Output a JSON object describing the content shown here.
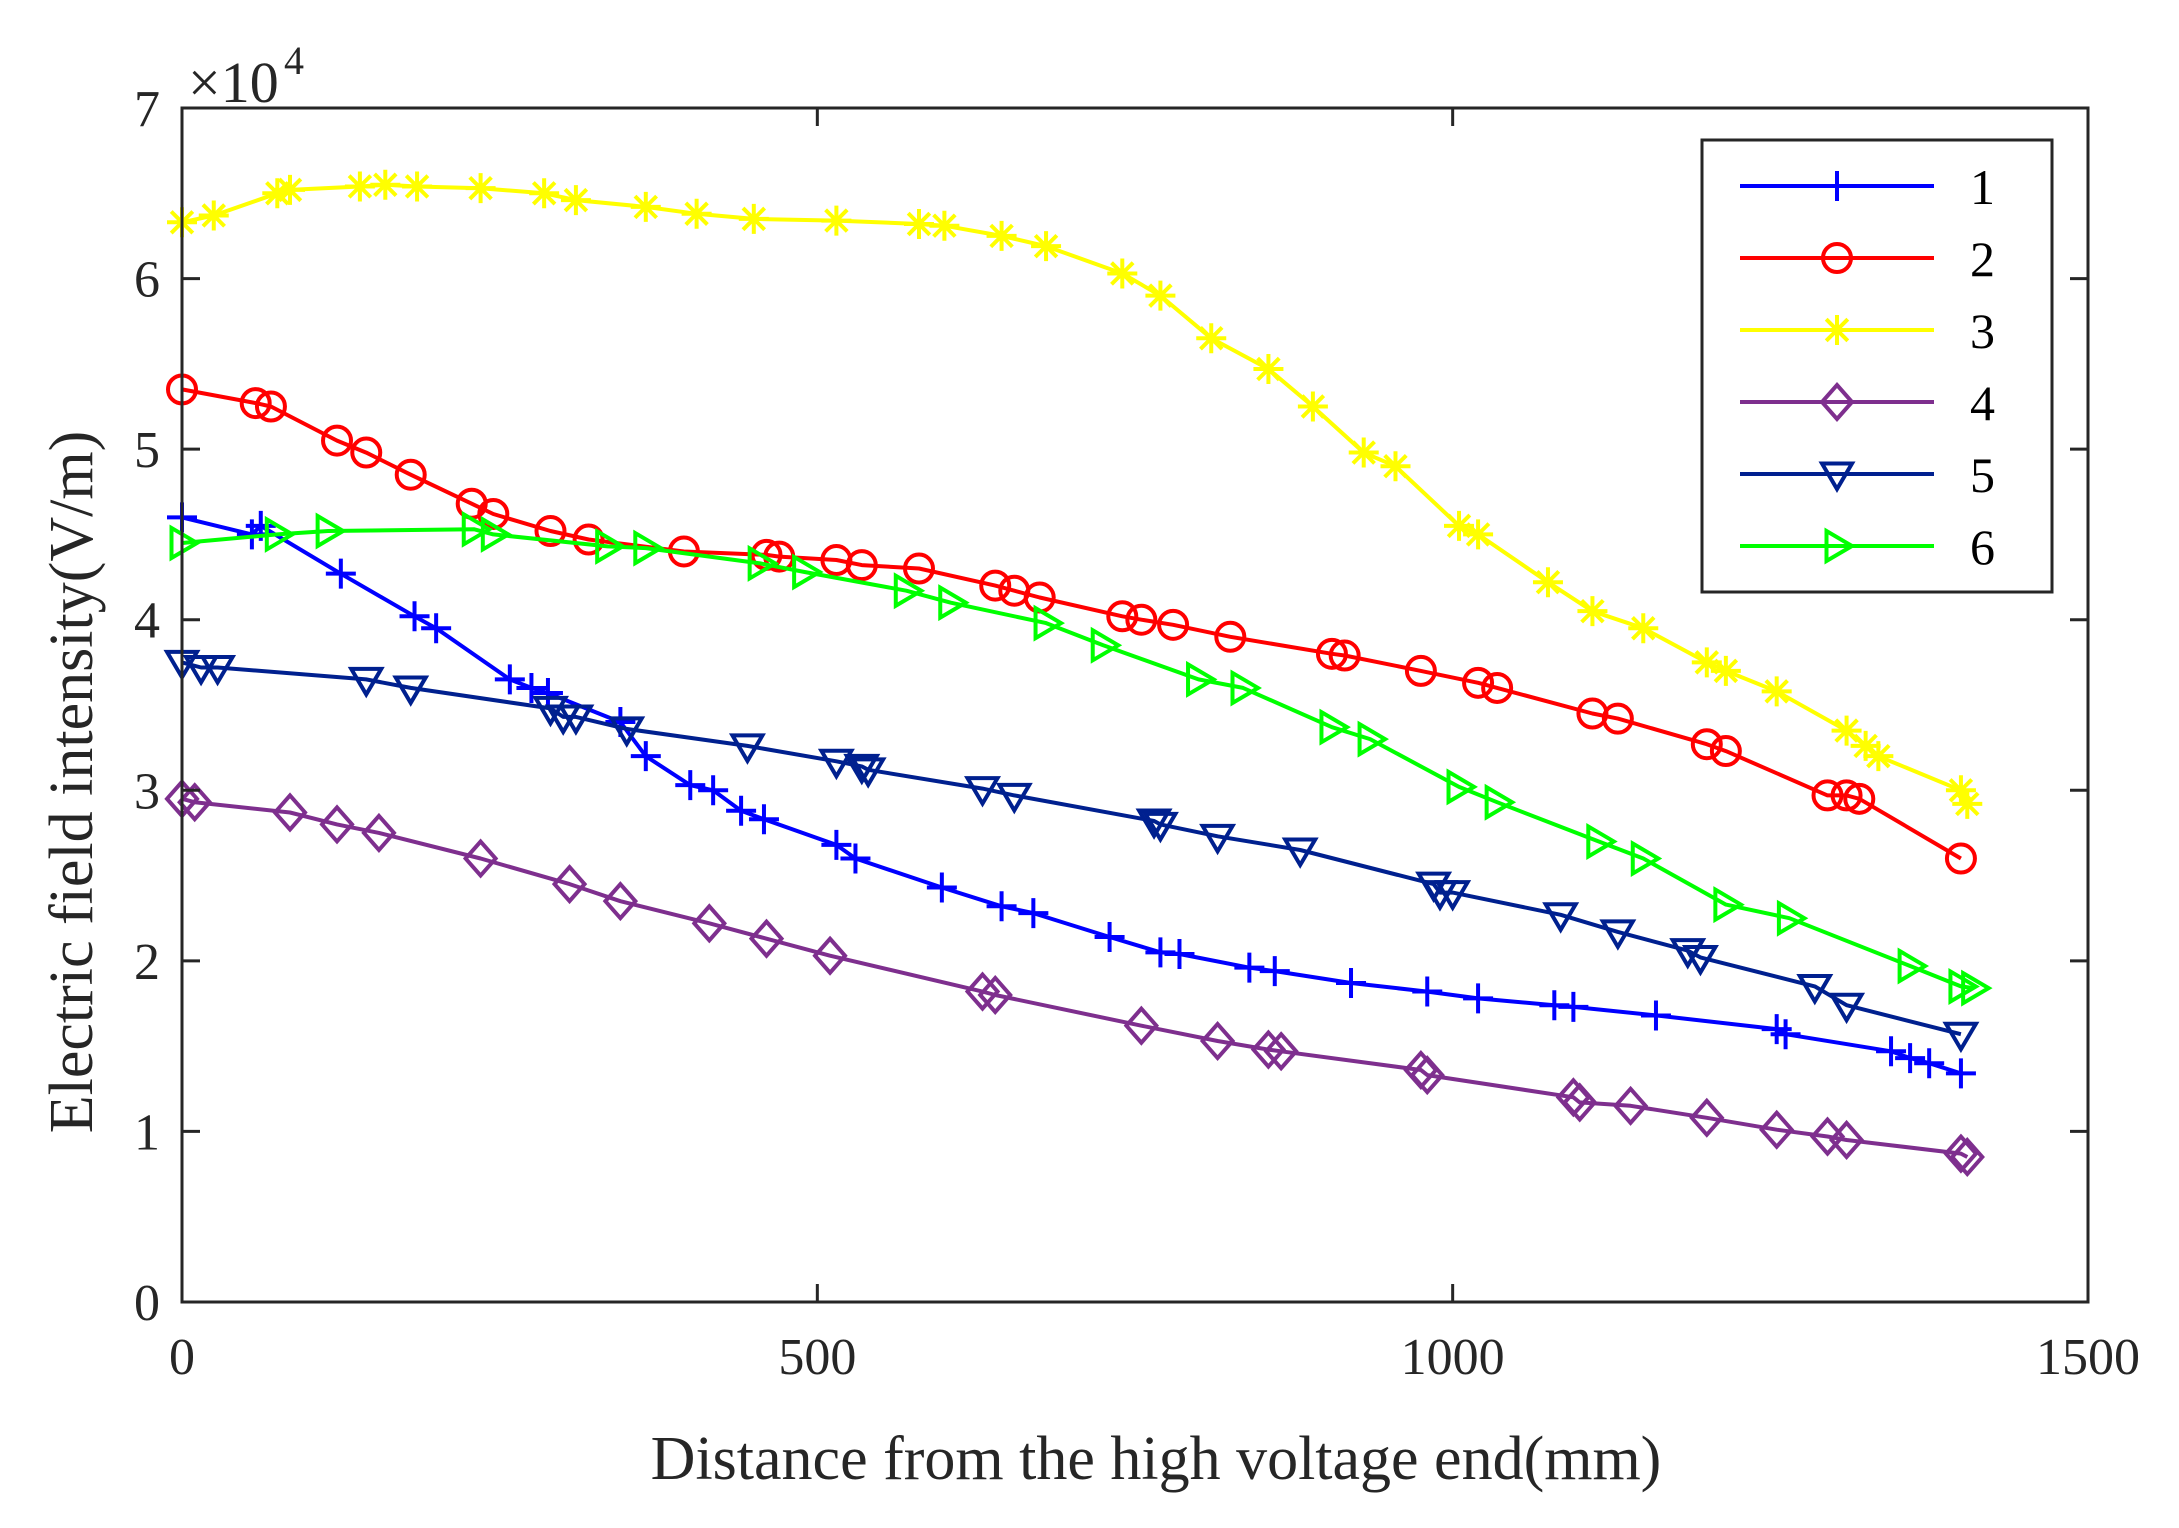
{
  "chart_data": {
    "type": "line",
    "title": "",
    "xlabel": "Distance from the high voltage end(mm)",
    "ylabel": "Electric field intensity(V/m)",
    "y_multiplier_base": "×10",
    "y_multiplier_exponent": "4",
    "xlim": [
      0,
      1500
    ],
    "ylim": [
      0,
      7
    ],
    "xticks": [
      0,
      500,
      1000,
      1500
    ],
    "xtick_labels": [
      "0",
      "500",
      "1000",
      "1500"
    ],
    "yticks": [
      0,
      1,
      2,
      3,
      4,
      5,
      6,
      7
    ],
    "ytick_labels": [
      "0",
      "1",
      "2",
      "3",
      "4",
      "5",
      "6",
      "7"
    ],
    "grid": false,
    "legend_position": "top-right",
    "series": [
      {
        "name": "1",
        "color": "#0000ff",
        "marker": "plus",
        "x": [
          0,
          55,
          62,
          125,
          183,
          200,
          258,
          275,
          288,
          345,
          365,
          400,
          418,
          440,
          458,
          515,
          530,
          598,
          645,
          670,
          730,
          770,
          785,
          840,
          860,
          920,
          980,
          1020,
          1080,
          1095,
          1160,
          1255,
          1262,
          1345,
          1360,
          1375,
          1400
        ],
        "y": [
          4.6,
          4.5,
          4.55,
          4.27,
          4.02,
          3.95,
          3.65,
          3.6,
          3.57,
          3.4,
          3.2,
          3.03,
          3.0,
          2.88,
          2.83,
          2.68,
          2.6,
          2.43,
          2.32,
          2.28,
          2.14,
          2.05,
          2.04,
          1.96,
          1.94,
          1.87,
          1.82,
          1.78,
          1.74,
          1.73,
          1.68,
          1.6,
          1.57,
          1.47,
          1.43,
          1.4,
          1.34
        ]
      },
      {
        "name": "2",
        "color": "#ff0000",
        "marker": "circle",
        "x": [
          0,
          58,
          70,
          122,
          145,
          180,
          228,
          245,
          290,
          320,
          395,
          460,
          470,
          515,
          535,
          580,
          640,
          655,
          675,
          740,
          755,
          780,
          825,
          905,
          915,
          975,
          1020,
          1035,
          1110,
          1130,
          1200,
          1215,
          1295,
          1310,
          1320,
          1400
        ],
        "y": [
          5.35,
          5.27,
          5.25,
          5.05,
          4.98,
          4.85,
          4.68,
          4.62,
          4.52,
          4.47,
          4.4,
          4.38,
          4.37,
          4.35,
          4.32,
          4.3,
          4.2,
          4.17,
          4.13,
          4.02,
          4.0,
          3.97,
          3.9,
          3.8,
          3.79,
          3.7,
          3.63,
          3.6,
          3.45,
          3.42,
          3.27,
          3.23,
          2.97,
          2.97,
          2.95,
          2.6
        ]
      },
      {
        "name": "3",
        "color": "#ffff00",
        "marker": "asterisk",
        "x": [
          0,
          25,
          75,
          85,
          140,
          160,
          185,
          235,
          285,
          310,
          365,
          405,
          450,
          515,
          580,
          600,
          645,
          680,
          740,
          770,
          810,
          855,
          890,
          930,
          955,
          1005,
          1020,
          1075,
          1110,
          1150,
          1200,
          1215,
          1255,
          1310,
          1325,
          1335,
          1400,
          1405
        ],
        "y": [
          6.33,
          6.37,
          6.5,
          6.52,
          6.54,
          6.55,
          6.54,
          6.53,
          6.5,
          6.46,
          6.42,
          6.38,
          6.35,
          6.34,
          6.32,
          6.31,
          6.25,
          6.19,
          6.03,
          5.9,
          5.65,
          5.47,
          5.25,
          4.98,
          4.9,
          4.55,
          4.5,
          4.22,
          4.05,
          3.95,
          3.75,
          3.7,
          3.58,
          3.35,
          3.26,
          3.2,
          3.0,
          2.92
        ]
      },
      {
        "name": "4",
        "color": "#7e2f8e",
        "marker": "diamond",
        "x": [
          0,
          10,
          85,
          122,
          155,
          235,
          305,
          345,
          415,
          460,
          510,
          630,
          640,
          755,
          815,
          855,
          865,
          975,
          980,
          1095,
          1100,
          1140,
          1200,
          1255,
          1295,
          1310,
          1400,
          1405
        ],
        "y": [
          2.95,
          2.93,
          2.87,
          2.8,
          2.75,
          2.6,
          2.45,
          2.35,
          2.22,
          2.13,
          2.03,
          1.82,
          1.8,
          1.62,
          1.53,
          1.48,
          1.47,
          1.36,
          1.33,
          1.2,
          1.17,
          1.15,
          1.08,
          1.01,
          0.97,
          0.95,
          0.87,
          0.85
        ]
      },
      {
        "name": "5",
        "color": "#00208f",
        "marker": "triangle-down",
        "x": [
          0,
          15,
          28,
          145,
          180,
          290,
          300,
          310,
          350,
          445,
          515,
          535,
          540,
          630,
          655,
          765,
          770,
          815,
          880,
          985,
          990,
          1000,
          1085,
          1130,
          1185,
          1195,
          1285,
          1310,
          1400
        ],
        "y": [
          3.75,
          3.72,
          3.72,
          3.65,
          3.6,
          3.48,
          3.43,
          3.43,
          3.36,
          3.26,
          3.17,
          3.14,
          3.12,
          3.01,
          2.97,
          2.82,
          2.8,
          2.73,
          2.65,
          2.45,
          2.4,
          2.4,
          2.27,
          2.17,
          2.06,
          2.02,
          1.85,
          1.74,
          1.57
        ]
      },
      {
        "name": "6",
        "color": "#00ff00",
        "marker": "triangle-right",
        "x": [
          0,
          75,
          115,
          230,
          245,
          335,
          365,
          455,
          490,
          570,
          605,
          680,
          725,
          800,
          835,
          905,
          935,
          1005,
          1035,
          1115,
          1150,
          1215,
          1265,
          1360,
          1400,
          1410
        ],
        "y": [
          4.45,
          4.5,
          4.52,
          4.53,
          4.5,
          4.43,
          4.42,
          4.33,
          4.28,
          4.17,
          4.1,
          3.98,
          3.85,
          3.65,
          3.6,
          3.37,
          3.3,
          3.02,
          2.93,
          2.7,
          2.6,
          2.33,
          2.25,
          1.97,
          1.85,
          1.84
        ]
      }
    ]
  }
}
